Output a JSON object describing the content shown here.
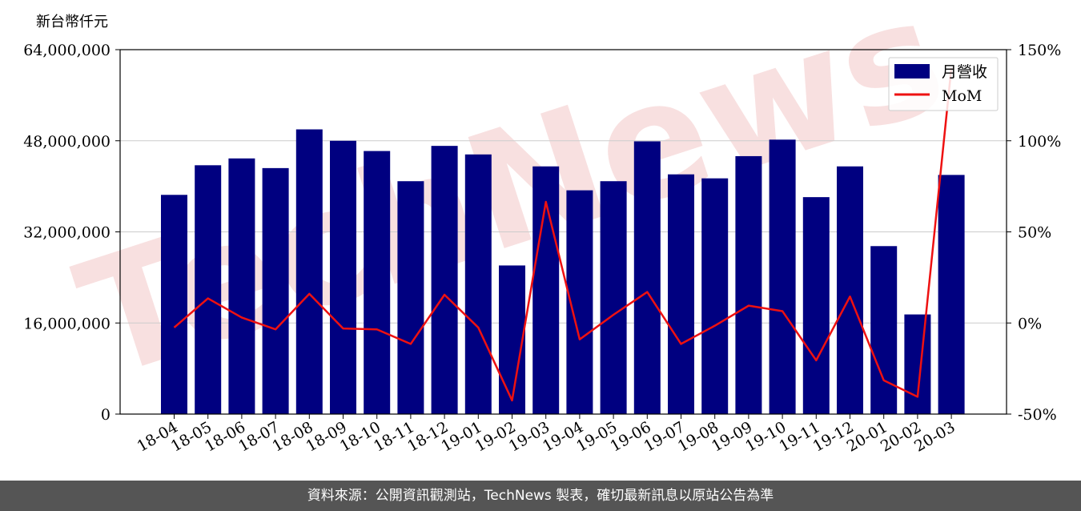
{
  "unit_label": "新台幣仟元",
  "footer": "資料來源：公開資訊觀測站，TechNews 製表，確切最新訊息以原站公告為準",
  "watermark": "TechNews",
  "colors": {
    "bar": "#000080",
    "line": "#ee1111",
    "grid": "#cccccc",
    "watermark": "#f6d6d6"
  },
  "chart_data": {
    "type": "bar",
    "categories": [
      "18-04",
      "18-05",
      "18-06",
      "18-07",
      "18-08",
      "18-09",
      "18-10",
      "18-11",
      "18-12",
      "19-01",
      "19-02",
      "19-03",
      "19-04",
      "19-05",
      "19-06",
      "19-07",
      "19-08",
      "19-09",
      "19-10",
      "19-11",
      "19-12",
      "20-01",
      "20-02",
      "20-03"
    ],
    "series": [
      {
        "name": "月營收",
        "type": "bar",
        "axis": "left",
        "values": [
          38500000,
          43700000,
          44900000,
          43200000,
          50000000,
          48000000,
          46200000,
          40900000,
          47100000,
          45600000,
          26100000,
          43500000,
          39300000,
          40900000,
          47900000,
          42100000,
          41400000,
          45300000,
          48200000,
          38100000,
          43500000,
          29500000,
          17500000,
          42000000
        ]
      },
      {
        "name": "MoM",
        "type": "line",
        "axis": "right",
        "values": [
          -2.5,
          13.5,
          3.0,
          -3.5,
          16.0,
          -3.0,
          -3.5,
          -11.5,
          15.5,
          -2.5,
          -42.5,
          66.5,
          -9.0,
          4.5,
          17.0,
          -11.5,
          -1.5,
          9.5,
          6.5,
          -20.5,
          14.5,
          -31.5,
          -40.5,
          140.0
        ]
      }
    ],
    "y_left": {
      "min": 0,
      "max": 64000000,
      "ticks": [
        "0",
        "16,000,000",
        "32,000,000",
        "48,000,000",
        "64,000,000"
      ],
      "tick_values": [
        0,
        16000000,
        32000000,
        48000000,
        64000000
      ]
    },
    "y_right": {
      "min": -50,
      "max": 150,
      "ticks": [
        "-50%",
        "0%",
        "50%",
        "100%",
        "150%"
      ],
      "tick_values": [
        -50,
        0,
        50,
        100,
        150
      ]
    },
    "legend_position": "top-right",
    "grid": true
  }
}
